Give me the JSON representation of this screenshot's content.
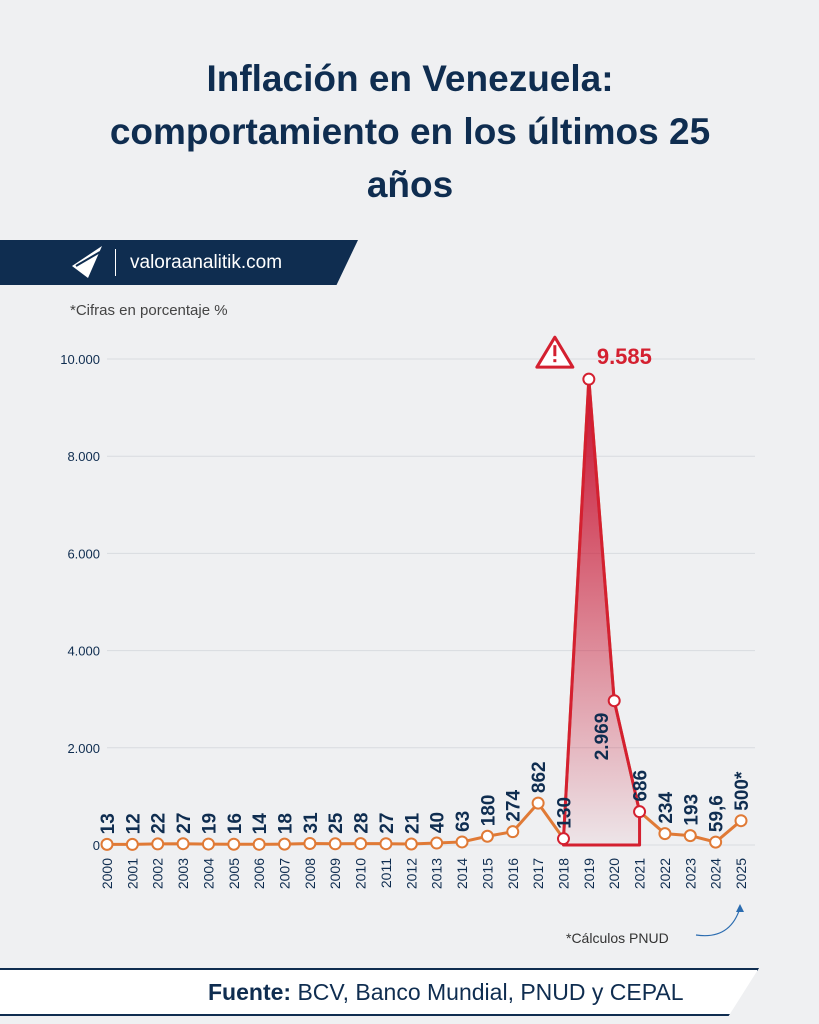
{
  "chart_data": {
    "type": "line",
    "title": "Inflación en Venezuela: comportamiento en los últimos 25 años",
    "brand": "valoraanalitik.com",
    "subtitle": "*Cifras en porcentaje %",
    "note": "*Cálculos PNUD",
    "source_label": "Fuente:",
    "source": "BCV, Banco Mundial, PNUD y CEPAL",
    "categories": [
      "2000",
      "2001",
      "2002",
      "2003",
      "2004",
      "2005",
      "2006",
      "2007",
      "2008",
      "2009",
      "2010",
      "2011",
      "2012",
      "2013",
      "2014",
      "2015",
      "2016",
      "2017",
      "2018",
      "2019",
      "2020",
      "2021",
      "2022",
      "2023",
      "2024",
      "2025"
    ],
    "series": [
      {
        "name": "Inflación",
        "color": "#e07a36",
        "values": [
          13,
          12,
          22,
          27,
          19,
          16,
          14,
          18,
          31,
          25,
          28,
          27,
          21,
          40,
          63,
          180,
          274,
          862,
          130,
          9585,
          2969,
          686,
          234,
          193,
          59.6,
          500
        ],
        "value_labels": [
          "13",
          "12",
          "22",
          "27",
          "19",
          "16",
          "14",
          "18",
          "31",
          "25",
          "28",
          "27",
          "21",
          "40",
          "63",
          "180",
          "274",
          "862",
          "130",
          "9.585",
          "2.969",
          "686",
          "234",
          "193",
          "59,6",
          "500*"
        ]
      }
    ],
    "highlight_range": [
      "2018",
      "2021"
    ],
    "highlight_color": "#d42030",
    "ylim": [
      0,
      10000
    ],
    "yticks": [
      0,
      {
        "value": 2000,
        "label": "2.000"
      },
      {
        "value": 4000,
        "label": "4.000"
      },
      {
        "value": 6000,
        "label": "6.000"
      },
      {
        "value": 8000,
        "label": "8.000"
      },
      {
        "value": 10000,
        "label": "10.000"
      }
    ],
    "grid": true
  }
}
